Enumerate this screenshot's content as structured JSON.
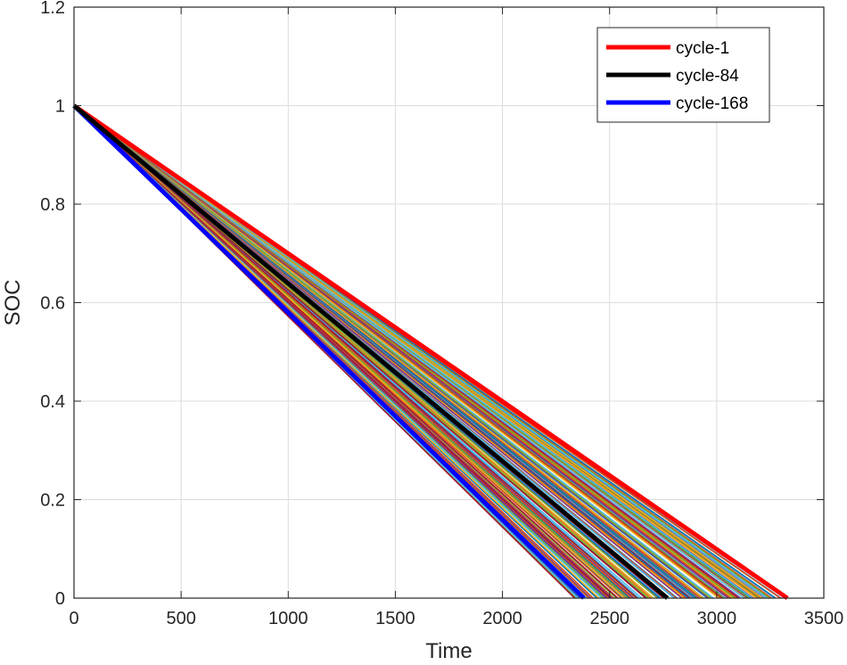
{
  "chart_data": {
    "type": "line",
    "title": "",
    "xlabel": "Time",
    "ylabel": "SOC",
    "xlim": [
      0,
      3500
    ],
    "ylim": [
      0,
      1.2
    ],
    "x_ticks": [
      "0",
      "500",
      "1000",
      "1500",
      "2000",
      "2500",
      "3000",
      "3500"
    ],
    "y_ticks": [
      "0",
      "0.2",
      "0.4",
      "0.6",
      "0.8",
      "1",
      "1.2"
    ],
    "grid": true,
    "legend_position": "top-right",
    "highlighted_series": [
      {
        "name": "cycle-1",
        "color": "#ff0000",
        "points": [
          [
            0,
            1.0
          ],
          [
            3330,
            0.0
          ]
        ]
      },
      {
        "name": "cycle-84",
        "color": "#000000",
        "points": [
          [
            0,
            1.0
          ],
          [
            2770,
            0.0
          ]
        ]
      },
      {
        "name": "cycle-168",
        "color": "#0000ff",
        "points": [
          [
            0,
            1.0
          ],
          [
            2380,
            0.0
          ]
        ]
      }
    ],
    "background_series": {
      "count": 168,
      "start": [
        0,
        1.0
      ],
      "end_time_range": [
        2330,
        3300
      ],
      "colors": [
        "#0072bd",
        "#d95319",
        "#edb120",
        "#7e2f8e",
        "#77ac30",
        "#4dbeee",
        "#a2142f"
      ]
    }
  }
}
